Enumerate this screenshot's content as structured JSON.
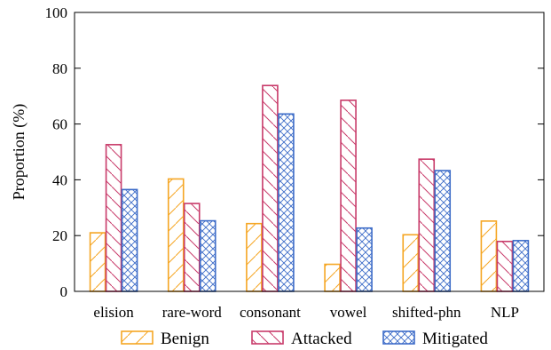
{
  "chart_data": {
    "type": "bar",
    "ylabel": "Proportion (%)",
    "xlabel": "",
    "ylim": [
      0,
      100
    ],
    "yticks": [
      0,
      20,
      40,
      60,
      80,
      100
    ],
    "categories": [
      "elision",
      "rare-word",
      "consonant",
      "vowel",
      "shifted-phn",
      "NLP"
    ],
    "series": [
      {
        "name": "Benign",
        "color": "#f5a623",
        "hatch": "forward-diagonal",
        "values": [
          21,
          40.3,
          24.3,
          9.7,
          20.3,
          25.2
        ]
      },
      {
        "name": "Attacked",
        "color": "#c83b6a",
        "hatch": "back-diagonal",
        "values": [
          52.6,
          31.5,
          73.8,
          68.5,
          47.4,
          17.9
        ]
      },
      {
        "name": "Mitigated",
        "color": "#3d6cc8",
        "hatch": "crosshatch",
        "values": [
          36.5,
          25.3,
          63.6,
          22.7,
          43.3,
          18.2
        ]
      }
    ],
    "legend_position": "bottom",
    "grid": false
  }
}
